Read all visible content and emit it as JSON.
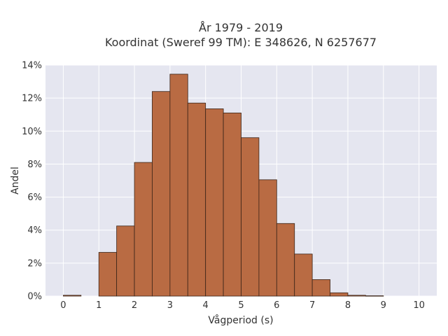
{
  "chart_data": {
    "type": "bar",
    "title_line1": "År 1979 - 2019",
    "title_line2": "Koordinat (Sweref 99 TM): E 348626, N 6257677",
    "xlabel": "Vågperiod (s)",
    "ylabel": "Andel",
    "x_ticks": [
      "0",
      "1",
      "2",
      "3",
      "4",
      "5",
      "6",
      "7",
      "8",
      "9",
      "10"
    ],
    "y_ticks": [
      "0%",
      "2%",
      "4%",
      "6%",
      "8%",
      "10%",
      "12%",
      "14%"
    ],
    "xlim": [
      -0.5,
      10.5
    ],
    "ylim": [
      0,
      14
    ],
    "bin_width": 0.5,
    "bins": [
      {
        "start": 0.0,
        "value": 0.05
      },
      {
        "start": 0.5,
        "value": 0.0
      },
      {
        "start": 1.0,
        "value": 2.65
      },
      {
        "start": 1.5,
        "value": 4.25
      },
      {
        "start": 2.0,
        "value": 8.1
      },
      {
        "start": 2.5,
        "value": 12.4
      },
      {
        "start": 3.0,
        "value": 13.45
      },
      {
        "start": 3.5,
        "value": 11.7
      },
      {
        "start": 4.0,
        "value": 11.35
      },
      {
        "start": 4.5,
        "value": 11.1
      },
      {
        "start": 5.0,
        "value": 9.6
      },
      {
        "start": 5.5,
        "value": 7.05
      },
      {
        "start": 6.0,
        "value": 4.4
      },
      {
        "start": 6.5,
        "value": 2.55
      },
      {
        "start": 7.0,
        "value": 1.0
      },
      {
        "start": 7.5,
        "value": 0.2
      },
      {
        "start": 8.0,
        "value": 0.05
      },
      {
        "start": 8.5,
        "value": 0.02
      }
    ],
    "grid": true,
    "colors": {
      "bar_fill": "#b96b43",
      "bar_stroke": "#3a2418",
      "plot_background": "#e5e6f0",
      "grid": "#ffffff",
      "text": "#333333"
    }
  }
}
